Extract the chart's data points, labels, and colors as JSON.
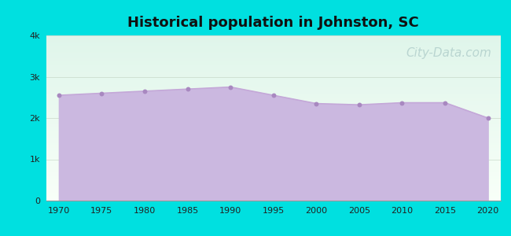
{
  "title": "Historical population in Johnston, SC",
  "title_fontsize": 13,
  "title_fontweight": "bold",
  "years": [
    1970,
    1975,
    1980,
    1985,
    1990,
    1995,
    2000,
    2005,
    2010,
    2015,
    2020
  ],
  "population": [
    2550,
    2600,
    2650,
    2700,
    2750,
    2550,
    2350,
    2320,
    2370,
    2370,
    2000
  ],
  "line_color": "#c4a8d8",
  "fill_color": "#cbb8e0",
  "fill_alpha": 1.0,
  "marker_color": "#a888c0",
  "marker_size": 18,
  "bg_outer": "#00e0e0",
  "bg_plot_top": "#dff5ea",
  "bg_plot_bottom": "#f8fff8",
  "ylabel_ticks": [
    "0",
    "1k",
    "2k",
    "3k",
    "4k"
  ],
  "ytick_values": [
    0,
    1000,
    2000,
    3000,
    4000
  ],
  "ylim": [
    0,
    4000
  ],
  "xlim": [
    1968.5,
    2021.5
  ],
  "xtick_values": [
    1970,
    1975,
    1980,
    1985,
    1990,
    1995,
    2000,
    2005,
    2010,
    2015,
    2020
  ],
  "grid_color": "#bbccbb",
  "grid_alpha": 0.6,
  "watermark_text": "City-Data.com",
  "watermark_color": "#99bbbb",
  "watermark_alpha": 0.55,
  "watermark_fontsize": 11,
  "tick_fontsize": 8,
  "title_color": "#111111"
}
